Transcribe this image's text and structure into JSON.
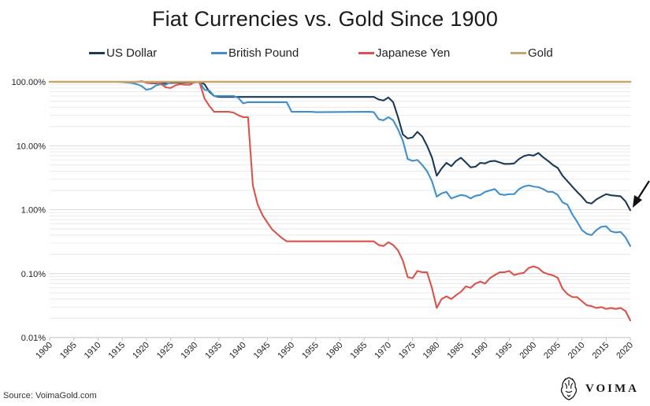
{
  "chart_data": {
    "type": "line",
    "title": "Fiat Currencies vs. Gold Since 1900",
    "xlabel": "",
    "ylabel": "",
    "y_scale": "log",
    "ylim": [
      0.0001,
      1
    ],
    "xlim": [
      1900,
      2020
    ],
    "y_ticks": [
      {
        "value": 1,
        "label": "100.00%"
      },
      {
        "value": 0.1,
        "label": "10.00%"
      },
      {
        "value": 0.01,
        "label": "1.00%"
      },
      {
        "value": 0.001,
        "label": "0.10%"
      },
      {
        "value": 0.0001,
        "label": "0.01%"
      }
    ],
    "x_ticks": [
      "1900",
      "1905",
      "1910",
      "1915",
      "1920",
      "1925",
      "1930",
      "1935",
      "1940",
      "1945",
      "1950",
      "1955",
      "1960",
      "1965",
      "1970",
      "1975",
      "1980",
      "1985",
      "1990",
      "1995",
      "2000",
      "2005",
      "2010",
      "2015",
      "2020"
    ],
    "grid": "horizontal minor lines",
    "legend_position": "top",
    "annotation": "arrow pointing to US Dollar endpoint",
    "series": [
      {
        "name": "US Dollar",
        "color": "#1c3a57",
        "points": [
          [
            1900,
            1
          ],
          [
            1918,
            1
          ],
          [
            1919,
            1.02
          ],
          [
            1920,
            0.97
          ],
          [
            1921,
            0.95
          ],
          [
            1930,
            0.98
          ],
          [
            1931,
            1
          ],
          [
            1932,
            0.92
          ],
          [
            1933,
            0.7
          ],
          [
            1934,
            0.6
          ],
          [
            1935,
            0.58
          ],
          [
            1967,
            0.58
          ],
          [
            1968,
            0.53
          ],
          [
            1969,
            0.51
          ],
          [
            1970,
            0.57
          ],
          [
            1971,
            0.48
          ],
          [
            1972,
            0.28
          ],
          [
            1973,
            0.15
          ],
          [
            1974,
            0.13
          ],
          [
            1975,
            0.135
          ],
          [
            1976,
            0.165
          ],
          [
            1977,
            0.14
          ],
          [
            1978,
            0.1
          ],
          [
            1979,
            0.066
          ],
          [
            1980,
            0.034
          ],
          [
            1981,
            0.044
          ],
          [
            1982,
            0.054
          ],
          [
            1983,
            0.048
          ],
          [
            1984,
            0.058
          ],
          [
            1985,
            0.065
          ],
          [
            1986,
            0.055
          ],
          [
            1987,
            0.046
          ],
          [
            1988,
            0.047
          ],
          [
            1989,
            0.054
          ],
          [
            1990,
            0.053
          ],
          [
            1991,
            0.057
          ],
          [
            1992,
            0.058
          ],
          [
            1993,
            0.055
          ],
          [
            1994,
            0.052
          ],
          [
            1995,
            0.052
          ],
          [
            1996,
            0.053
          ],
          [
            1997,
            0.062
          ],
          [
            1998,
            0.069
          ],
          [
            1999,
            0.072
          ],
          [
            2000,
            0.07
          ],
          [
            2001,
            0.077
          ],
          [
            2002,
            0.066
          ],
          [
            2003,
            0.058
          ],
          [
            2004,
            0.05
          ],
          [
            2005,
            0.045
          ],
          [
            2006,
            0.034
          ],
          [
            2007,
            0.028
          ],
          [
            2008,
            0.023
          ],
          [
            2009,
            0.019
          ],
          [
            2010,
            0.016
          ],
          [
            2011,
            0.013
          ],
          [
            2012,
            0.0125
          ],
          [
            2013,
            0.0145
          ],
          [
            2014,
            0.016
          ],
          [
            2015,
            0.0175
          ],
          [
            2016,
            0.0168
          ],
          [
            2017,
            0.0165
          ],
          [
            2018,
            0.0162
          ],
          [
            2019,
            0.0135
          ],
          [
            2020,
            0.0098
          ]
        ]
      },
      {
        "name": "British Pound",
        "color": "#3f8fce",
        "points": [
          [
            1900,
            1
          ],
          [
            1914,
            1
          ],
          [
            1917,
            0.96
          ],
          [
            1918,
            0.92
          ],
          [
            1919,
            0.86
          ],
          [
            1920,
            0.75
          ],
          [
            1921,
            0.78
          ],
          [
            1922,
            0.88
          ],
          [
            1923,
            0.92
          ],
          [
            1924,
            0.9
          ],
          [
            1925,
            1
          ],
          [
            1931,
            1
          ],
          [
            1932,
            0.75
          ],
          [
            1933,
            0.73
          ],
          [
            1934,
            0.6
          ],
          [
            1938,
            0.6
          ],
          [
            1939,
            0.56
          ],
          [
            1940,
            0.46
          ],
          [
            1941,
            0.48
          ],
          [
            1949,
            0.48
          ],
          [
            1950,
            0.34
          ],
          [
            1954,
            0.34
          ],
          [
            1955,
            0.335
          ],
          [
            1966,
            0.34
          ],
          [
            1967,
            0.335
          ],
          [
            1968,
            0.26
          ],
          [
            1969,
            0.25
          ],
          [
            1970,
            0.28
          ],
          [
            1971,
            0.25
          ],
          [
            1972,
            0.18
          ],
          [
            1973,
            0.12
          ],
          [
            1974,
            0.062
          ],
          [
            1975,
            0.058
          ],
          [
            1976,
            0.06
          ],
          [
            1977,
            0.05
          ],
          [
            1978,
            0.04
          ],
          [
            1979,
            0.028
          ],
          [
            1980,
            0.016
          ],
          [
            1981,
            0.018
          ],
          [
            1982,
            0.019
          ],
          [
            1983,
            0.015
          ],
          [
            1984,
            0.016
          ],
          [
            1985,
            0.017
          ],
          [
            1986,
            0.0165
          ],
          [
            1987,
            0.015
          ],
          [
            1988,
            0.0165
          ],
          [
            1989,
            0.017
          ],
          [
            1990,
            0.019
          ],
          [
            1991,
            0.02
          ],
          [
            1992,
            0.021
          ],
          [
            1993,
            0.0175
          ],
          [
            1994,
            0.017
          ],
          [
            1995,
            0.0175
          ],
          [
            1996,
            0.0175
          ],
          [
            1997,
            0.021
          ],
          [
            1998,
            0.023
          ],
          [
            1999,
            0.024
          ],
          [
            2000,
            0.023
          ],
          [
            2001,
            0.0225
          ],
          [
            2002,
            0.021
          ],
          [
            2003,
            0.019
          ],
          [
            2004,
            0.019
          ],
          [
            2005,
            0.017
          ],
          [
            2006,
            0.013
          ],
          [
            2007,
            0.012
          ],
          [
            2008,
            0.0085
          ],
          [
            2009,
            0.0065
          ],
          [
            2010,
            0.0048
          ],
          [
            2011,
            0.0042
          ],
          [
            2012,
            0.004
          ],
          [
            2013,
            0.0048
          ],
          [
            2014,
            0.0054
          ],
          [
            2015,
            0.0055
          ],
          [
            2016,
            0.0046
          ],
          [
            2017,
            0.0044
          ],
          [
            2018,
            0.0045
          ],
          [
            2019,
            0.0037
          ],
          [
            2020,
            0.0027
          ]
        ]
      },
      {
        "name": "Japanese Yen",
        "color": "#d9534a",
        "points": [
          [
            1900,
            1
          ],
          [
            1918,
            1
          ],
          [
            1919,
            1.02
          ],
          [
            1920,
            0.97
          ],
          [
            1921,
            0.96
          ],
          [
            1922,
            0.98
          ],
          [
            1923,
            0.93
          ],
          [
            1924,
            0.82
          ],
          [
            1925,
            0.8
          ],
          [
            1926,
            0.88
          ],
          [
            1927,
            0.92
          ],
          [
            1928,
            0.9
          ],
          [
            1929,
            0.9
          ],
          [
            1930,
            1
          ],
          [
            1931,
            0.97
          ],
          [
            1932,
            0.55
          ],
          [
            1933,
            0.42
          ],
          [
            1934,
            0.34
          ],
          [
            1937,
            0.34
          ],
          [
            1938,
            0.33
          ],
          [
            1939,
            0.3
          ],
          [
            1940,
            0.28
          ],
          [
            1941,
            0.28
          ],
          [
            1942,
            0.024
          ],
          [
            1943,
            0.012
          ],
          [
            1944,
            0.0082
          ],
          [
            1945,
            0.0063
          ],
          [
            1946,
            0.0049
          ],
          [
            1947,
            0.0042
          ],
          [
            1948,
            0.0036
          ],
          [
            1949,
            0.0032
          ],
          [
            1950,
            0.0032
          ],
          [
            1967,
            0.0032
          ],
          [
            1968,
            0.0028
          ],
          [
            1969,
            0.0027
          ],
          [
            1970,
            0.0031
          ],
          [
            1971,
            0.0028
          ],
          [
            1972,
            0.0023
          ],
          [
            1973,
            0.0016
          ],
          [
            1974,
            0.00088
          ],
          [
            1975,
            0.00085
          ],
          [
            1976,
            0.0011
          ],
          [
            1977,
            0.00105
          ],
          [
            1978,
            0.00105
          ],
          [
            1979,
            0.0006
          ],
          [
            1980,
            0.00029
          ],
          [
            1981,
            0.0004
          ],
          [
            1982,
            0.00044
          ],
          [
            1983,
            0.0004
          ],
          [
            1984,
            0.00046
          ],
          [
            1985,
            0.00052
          ],
          [
            1986,
            0.00063
          ],
          [
            1987,
            0.0006
          ],
          [
            1988,
            0.0007
          ],
          [
            1989,
            0.00075
          ],
          [
            1990,
            0.0007
          ],
          [
            1991,
            0.00085
          ],
          [
            1992,
            0.00095
          ],
          [
            1993,
            0.00105
          ],
          [
            1994,
            0.00105
          ],
          [
            1995,
            0.0011
          ],
          [
            1996,
            0.00095
          ],
          [
            1997,
            0.001
          ],
          [
            1998,
            0.00103
          ],
          [
            1999,
            0.00123
          ],
          [
            2000,
            0.0013
          ],
          [
            2001,
            0.00122
          ],
          [
            2002,
            0.00105
          ],
          [
            2003,
            0.00098
          ],
          [
            2004,
            0.00094
          ],
          [
            2005,
            0.00086
          ],
          [
            2006,
            0.00058
          ],
          [
            2007,
            0.00048
          ],
          [
            2008,
            0.00043
          ],
          [
            2009,
            0.00043
          ],
          [
            2010,
            0.00037
          ],
          [
            2011,
            0.00032
          ],
          [
            2012,
            0.00031
          ],
          [
            2013,
            0.00029
          ],
          [
            2014,
            0.0003
          ],
          [
            2015,
            0.00028
          ],
          [
            2016,
            0.00029
          ],
          [
            2017,
            0.00028
          ],
          [
            2018,
            0.00029
          ],
          [
            2019,
            0.00026
          ],
          [
            2020,
            0.000185
          ]
        ]
      },
      {
        "name": "Gold",
        "color": "#c9a46c",
        "points": [
          [
            1900,
            1
          ],
          [
            2020,
            1
          ]
        ]
      }
    ]
  },
  "source": "Source: VoimaGold.com",
  "brand": {
    "name": "VOIMA",
    "logo_icon": "voima-lion-crest-icon"
  }
}
